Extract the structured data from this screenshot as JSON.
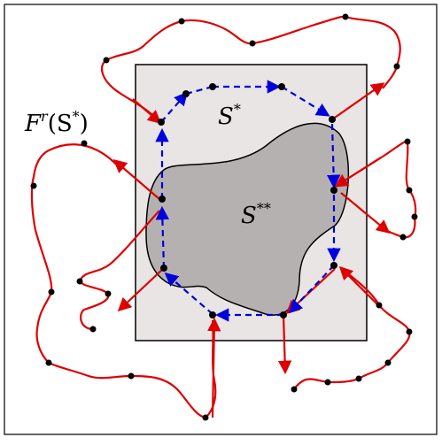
{
  "labels": {
    "outer_region": "F",
    "outer_region_sup": "r",
    "outer_region_arg_open": "(S",
    "outer_region_arg_sup": "*",
    "outer_region_arg_close": ")",
    "inner_region": "S",
    "inner_region_sup": "*",
    "core_region": "S",
    "core_region_sup": "**"
  },
  "colors": {
    "outer_path": "#dd0000",
    "inner_path": "#0000dd",
    "rect_fill": "#e8e5e4",
    "core_fill": "#b5b1b0",
    "point": "#000000",
    "frame": "#333333"
  },
  "icons": {
    "outer_arrowhead": "red-arrowhead",
    "inner_arrowhead": "blue-arrowhead",
    "vertex": "black-dot"
  }
}
